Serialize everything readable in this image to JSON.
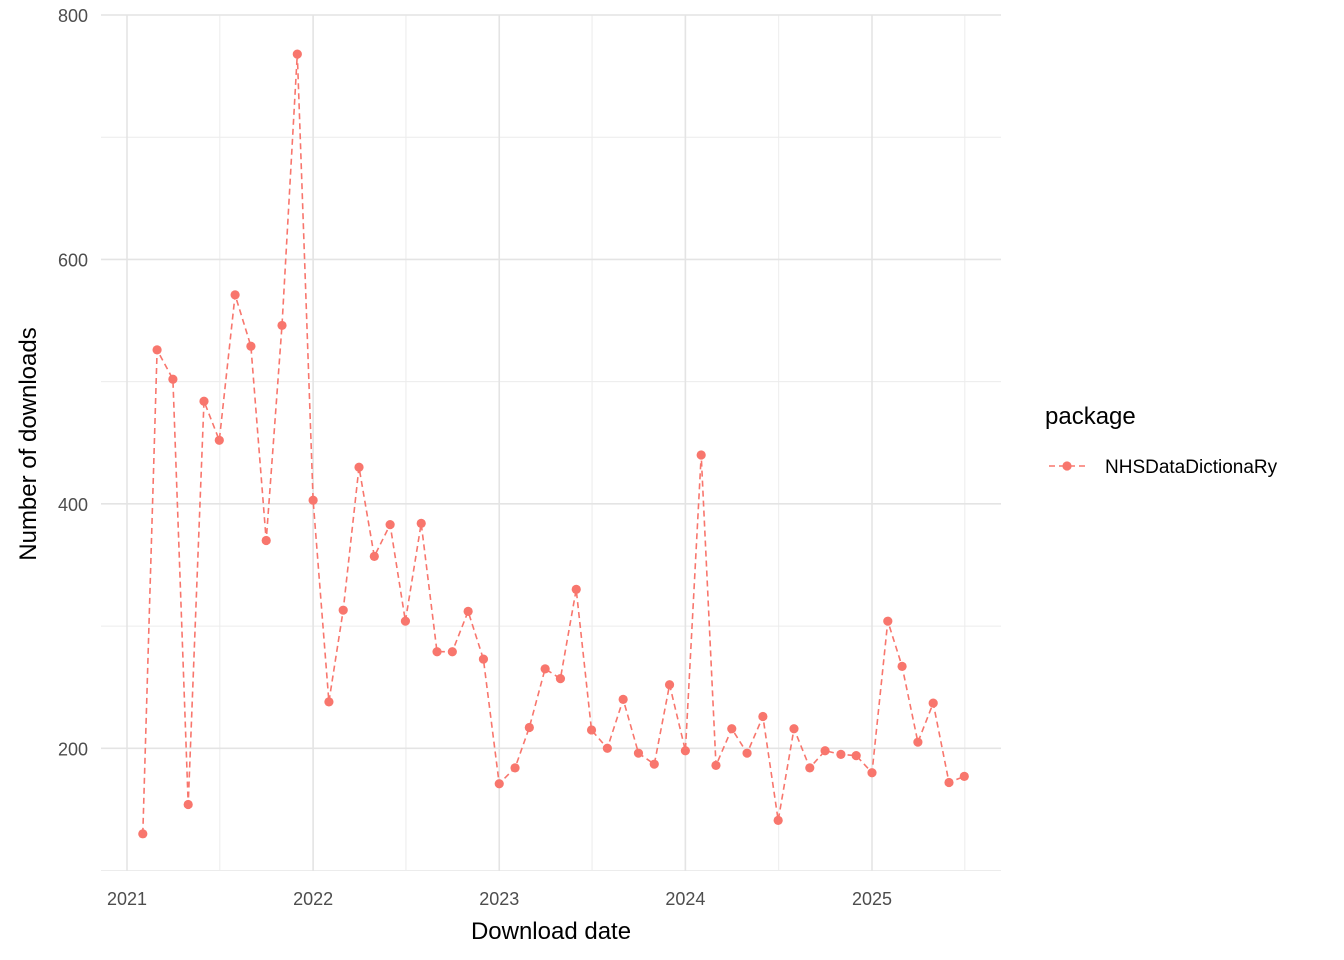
{
  "chart_data": {
    "type": "line",
    "title": "",
    "xlabel": "Download date",
    "ylabel": "Number of downloads",
    "x_ticks": [
      "2021",
      "2022",
      "2023",
      "2024",
      "2025"
    ],
    "y_ticks": [
      "200",
      "400",
      "600",
      "800"
    ],
    "ylim": [
      100,
      800
    ],
    "xlim": [
      "2020-11-15",
      "2025-08-01"
    ],
    "grid": true,
    "line_style": "dashed",
    "legend": {
      "title": "package",
      "placement": "right"
    },
    "series": [
      {
        "name": "NHSDataDictionaRy",
        "color": "#F8766D",
        "x": [
          "2021-02-01",
          "2021-03-01",
          "2021-04-01",
          "2021-05-01",
          "2021-06-01",
          "2021-07-01",
          "2021-08-01",
          "2021-09-01",
          "2021-10-01",
          "2021-11-01",
          "2021-12-01",
          "2022-01-01",
          "2022-02-01",
          "2022-03-01",
          "2022-04-01",
          "2022-05-01",
          "2022-06-01",
          "2022-07-01",
          "2022-08-01",
          "2022-09-01",
          "2022-10-01",
          "2022-11-01",
          "2022-12-01",
          "2023-01-01",
          "2023-02-01",
          "2023-03-01",
          "2023-04-01",
          "2023-05-01",
          "2023-06-01",
          "2023-07-01",
          "2023-08-01",
          "2023-09-01",
          "2023-10-01",
          "2023-11-01",
          "2023-12-01",
          "2024-01-01",
          "2024-02-01",
          "2024-03-01",
          "2024-04-01",
          "2024-05-01",
          "2024-06-01",
          "2024-07-01",
          "2024-08-01",
          "2024-09-01",
          "2024-10-01",
          "2024-11-01",
          "2024-12-01",
          "2025-01-01",
          "2025-02-01",
          "2025-03-01",
          "2025-04-01",
          "2025-05-01",
          "2025-06-01",
          "2025-07-01"
        ],
        "y": [
          130,
          526,
          502,
          154,
          484,
          452,
          571,
          529,
          370,
          546,
          768,
          403,
          238,
          313,
          430,
          357,
          383,
          304,
          384,
          279,
          279,
          312,
          273,
          171,
          184,
          217,
          265,
          257,
          330,
          215,
          200,
          240,
          196,
          187,
          252,
          198,
          440,
          186,
          216,
          196,
          226,
          141,
          216,
          184,
          198,
          195,
          194,
          180,
          304,
          267,
          205,
          237,
          172,
          177
        ]
      }
    ]
  }
}
